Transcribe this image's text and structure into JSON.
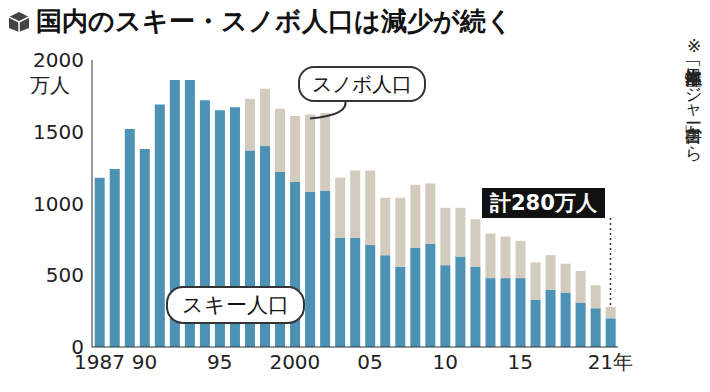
{
  "chart_data": {
    "type": "bar",
    "title": "国内のスキー・スノボ人口は減少が続く",
    "stacked": true,
    "y_label": "万人",
    "source": "※日本生産性本部「レジャー白書」から",
    "annotations": [
      "計280万人"
    ],
    "categories": [
      "1987",
      null,
      null,
      "90",
      null,
      null,
      null,
      null,
      "95",
      null,
      null,
      null,
      null,
      "2000",
      null,
      null,
      null,
      null,
      "05",
      null,
      null,
      null,
      null,
      "10",
      null,
      null,
      null,
      null,
      "15",
      null,
      null,
      null,
      null,
      null,
      "21年"
    ],
    "series": [
      {
        "name": "スキー人口",
        "color": "#4b92b4",
        "values": [
          1180,
          1240,
          1520,
          1380,
          1690,
          1860,
          1860,
          1720,
          1650,
          1670,
          1370,
          1400,
          1220,
          1150,
          1080,
          1090,
          760,
          760,
          710,
          640,
          560,
          690,
          720,
          570,
          630,
          560,
          480,
          480,
          480,
          330,
          400,
          380,
          310,
          270,
          200
        ]
      },
      {
        "name": "スノボ人口",
        "color": "#d4cbbf",
        "values": [
          null,
          null,
          null,
          null,
          null,
          null,
          null,
          null,
          null,
          null,
          360,
          400,
          440,
          460,
          540,
          540,
          420,
          470,
          520,
          400,
          480,
          440,
          420,
          400,
          340,
          330,
          310,
          290,
          260,
          260,
          240,
          200,
          220,
          160,
          80
        ]
      }
    ],
    "ylim": [
      0,
      2000
    ],
    "yticks": [
      0,
      500,
      1000,
      1500,
      2000
    ],
    "grid": false
  }
}
